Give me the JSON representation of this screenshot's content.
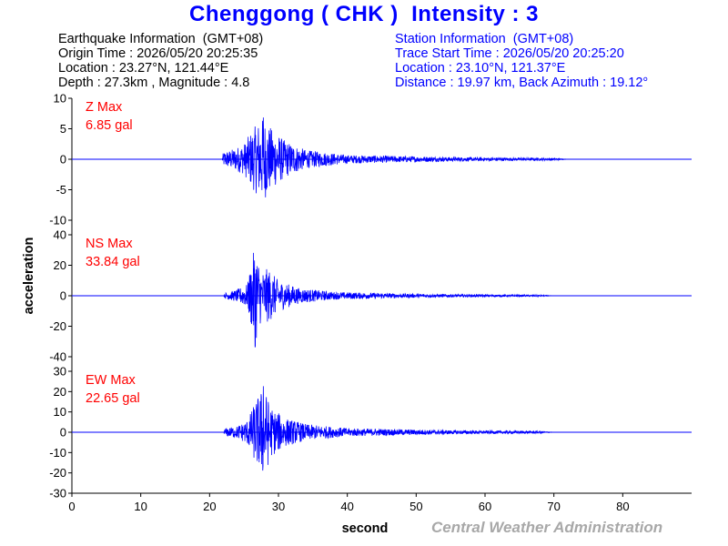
{
  "title": "Chenggong ( CHK )  Intensity : 3",
  "earthquake_info": {
    "heading": "Earthquake Information  (GMT+08)",
    "origin_time": "Origin Time : 2026/05/20 20:25:35",
    "location": "Location : 23.27°N, 121.44°E",
    "depth_magnitude": "Depth : 27.3km , Magnitude : 4.8"
  },
  "station_info": {
    "heading": "Station Information  (GMT+08)",
    "trace_start": "Trace Start Time : 2026/05/20 20:25:20",
    "location": "Location : 23.10°N, 121.37°E",
    "distance": "Distance : 19.97 km, Back Azimuth : 19.12°"
  },
  "credit": "Central Weather Administration",
  "colors": {
    "title": "#0000ff",
    "trace": "#0000ff",
    "label": "#ff0000",
    "credit": "#a8a8a8"
  },
  "chart_data": {
    "type": "line",
    "xlabel": "second",
    "ylabel": "acceleration",
    "xlim": [
      0,
      90
    ],
    "xticks": [
      0,
      10,
      20,
      30,
      40,
      50,
      60,
      70,
      80
    ],
    "grid": false,
    "panels": [
      {
        "name": "Z",
        "max_label": "Z Max",
        "max_value": "6.85 gal",
        "ylim": [
          -10,
          10
        ],
        "yticks": [
          10,
          5,
          0,
          -5,
          -10
        ],
        "envelope": [
          {
            "t": 0,
            "a": 0
          },
          {
            "t": 21.8,
            "a": 0
          },
          {
            "t": 22.0,
            "a": 1.2
          },
          {
            "t": 23,
            "a": 1.5
          },
          {
            "t": 25,
            "a": 2.5
          },
          {
            "t": 26,
            "a": 4.5
          },
          {
            "t": 27,
            "a": 6.0
          },
          {
            "t": 27.8,
            "a": 6.85
          },
          {
            "t": 29,
            "a": 5.0
          },
          {
            "t": 31,
            "a": 3.0
          },
          {
            "t": 34,
            "a": 1.5
          },
          {
            "t": 40,
            "a": 0.7
          },
          {
            "t": 55,
            "a": 0.35
          },
          {
            "t": 70,
            "a": 0.2
          },
          {
            "t": 72,
            "a": 0
          },
          {
            "t": 90,
            "a": 0
          }
        ]
      },
      {
        "name": "NS",
        "max_label": "NS Max",
        "max_value": "33.84 gal",
        "ylim": [
          -40,
          40
        ],
        "yticks": [
          40,
          20,
          0,
          -20,
          -40
        ],
        "envelope": [
          {
            "t": 0,
            "a": 0
          },
          {
            "t": 22.0,
            "a": 0
          },
          {
            "t": 22.3,
            "a": 2.0
          },
          {
            "t": 24,
            "a": 4.0
          },
          {
            "t": 25.5,
            "a": 8.0
          },
          {
            "t": 26.6,
            "a": 33.84
          },
          {
            "t": 27.5,
            "a": 16.0
          },
          {
            "t": 28.5,
            "a": 18.0
          },
          {
            "t": 30,
            "a": 10.0
          },
          {
            "t": 33,
            "a": 5.0
          },
          {
            "t": 38,
            "a": 2.5
          },
          {
            "t": 50,
            "a": 1.2
          },
          {
            "t": 68,
            "a": 0.5
          },
          {
            "t": 70,
            "a": 0
          },
          {
            "t": 90,
            "a": 0
          }
        ]
      },
      {
        "name": "EW",
        "max_label": "EW Max",
        "max_value": "22.65 gal",
        "ylim": [
          -30,
          30
        ],
        "yticks": [
          30,
          20,
          10,
          0,
          -10,
          -20,
          -30
        ],
        "envelope": [
          {
            "t": 0,
            "a": 0
          },
          {
            "t": 22.0,
            "a": 0
          },
          {
            "t": 22.3,
            "a": 2.0
          },
          {
            "t": 24,
            "a": 3.0
          },
          {
            "t": 25.5,
            "a": 6.0
          },
          {
            "t": 26.5,
            "a": 14.0
          },
          {
            "t": 27.8,
            "a": 22.65
          },
          {
            "t": 29,
            "a": 12.0
          },
          {
            "t": 31,
            "a": 7.0
          },
          {
            "t": 34,
            "a": 4.0
          },
          {
            "t": 40,
            "a": 2.0
          },
          {
            "t": 55,
            "a": 1.0
          },
          {
            "t": 68,
            "a": 0.6
          },
          {
            "t": 70,
            "a": 0
          },
          {
            "t": 90,
            "a": 0
          }
        ]
      }
    ]
  }
}
